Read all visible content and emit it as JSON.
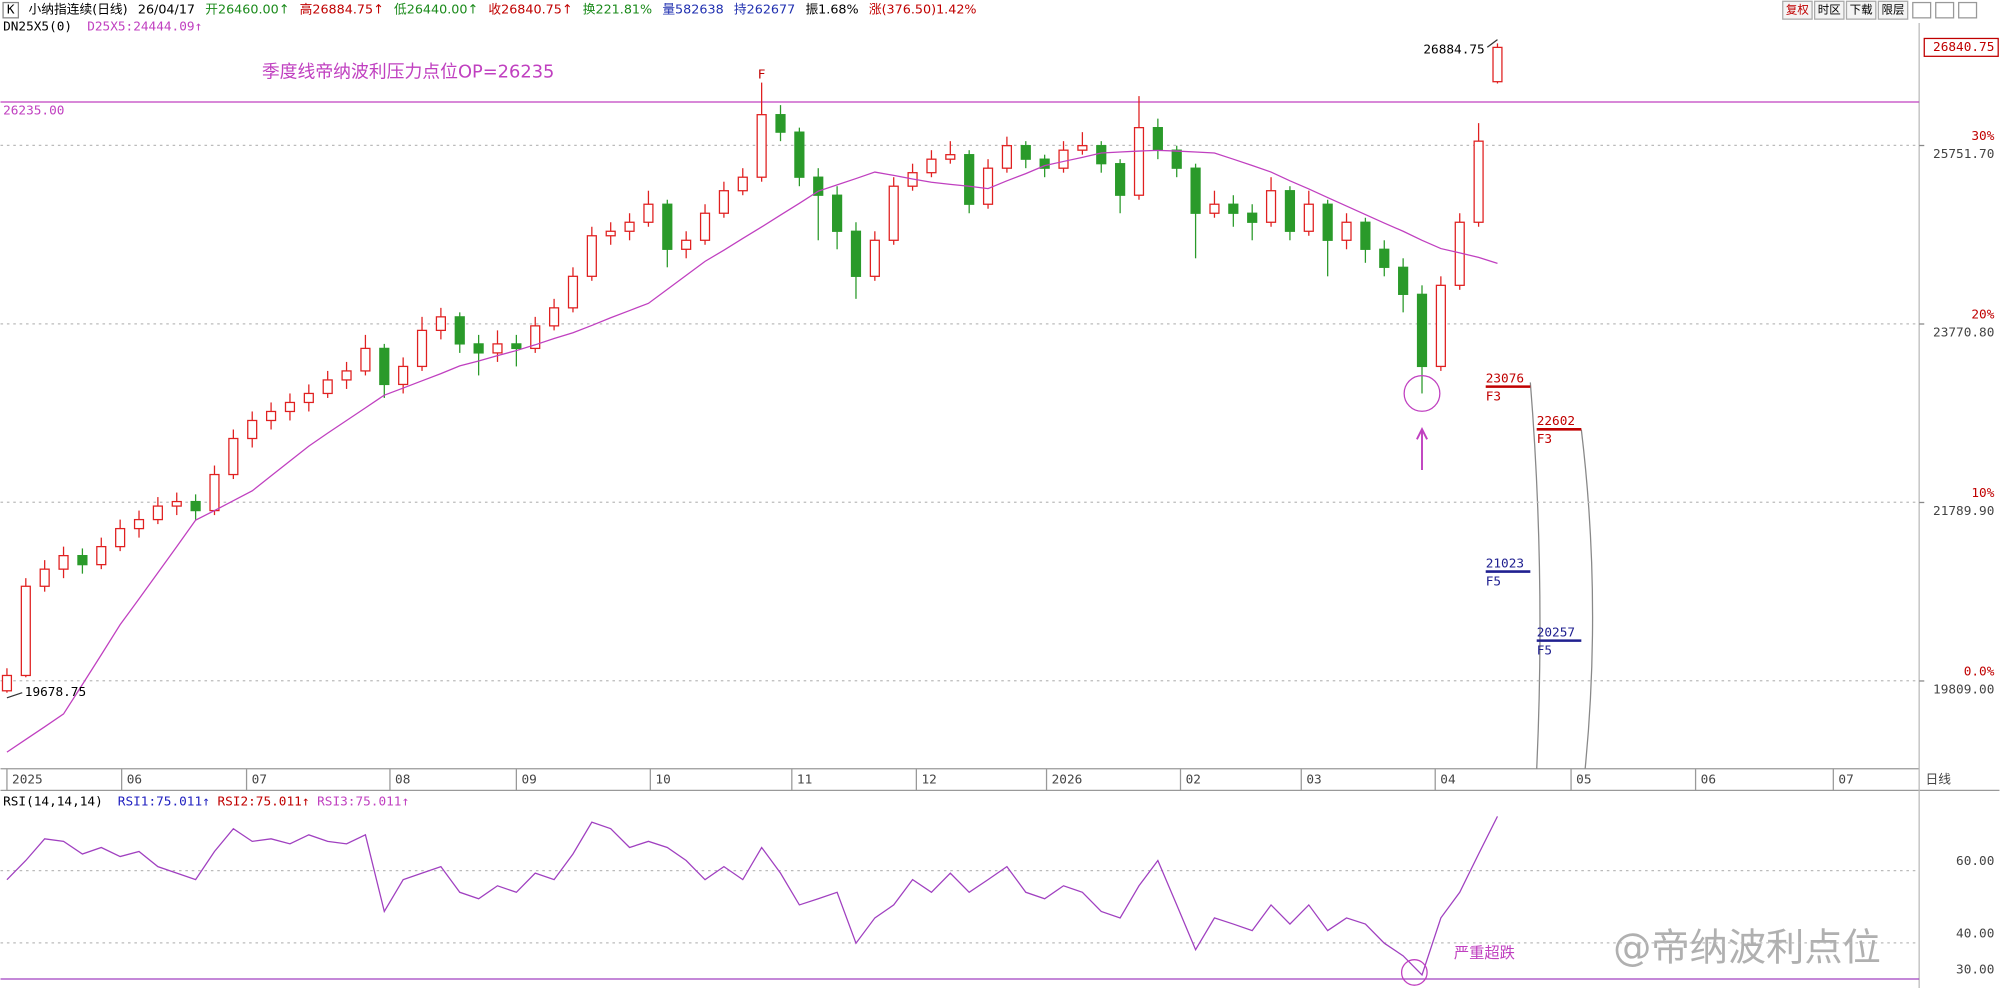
{
  "header": {
    "icon": "K",
    "items": [
      {
        "text": "小纳指连续(日线)",
        "color": "#000000"
      },
      {
        "text": "26/04/17",
        "color": "#000000"
      },
      {
        "text": "开26460.00↑",
        "color": "#1a8a1a"
      },
      {
        "text": "高26884.75↑",
        "color": "#c00000"
      },
      {
        "text": "低26440.00↑",
        "color": "#1a8a1a"
      },
      {
        "text": "收26840.75↑",
        "color": "#c00000"
      },
      {
        "text": "换221.81%",
        "color": "#1a8a1a"
      },
      {
        "text": "量582638",
        "color": "#2030b0"
      },
      {
        "text": "持262677",
        "color": "#2030b0"
      },
      {
        "text": "振1.68%",
        "color": "#000000"
      },
      {
        "text": "涨(376.50)1.42%",
        "color": "#c00000"
      }
    ],
    "buttons": [
      "复权",
      "时区",
      "下载",
      "限层"
    ],
    "indicator": "DN25X5(0)",
    "indicator_value": "D25X5:24444.09↑"
  },
  "chart_data": [
    {
      "type": "candlestick",
      "up_color": "#e02020",
      "down_color": "#2a9a2a",
      "x": [
        0,
        1,
        2,
        3,
        4,
        5,
        6,
        7,
        8,
        9,
        10,
        11,
        12,
        13,
        14,
        15,
        16,
        17,
        18,
        19,
        20,
        21,
        22,
        23,
        24,
        25,
        26,
        27,
        28,
        29,
        30,
        31,
        32,
        33,
        34,
        35,
        36,
        37,
        38,
        39,
        40,
        41,
        42,
        43,
        44,
        45,
        46,
        47,
        48,
        49,
        50,
        51,
        52,
        53,
        54,
        55,
        56,
        57,
        58,
        59,
        60,
        61,
        62,
        63,
        64,
        65,
        66,
        67,
        68,
        69,
        70,
        71,
        72,
        73,
        74,
        75,
        76,
        77,
        78,
        79
      ],
      "ohlc": [
        [
          19700,
          19950,
          19678.75,
          19870
        ],
        [
          19870,
          20950,
          19850,
          20860
        ],
        [
          20860,
          21150,
          20800,
          21050
        ],
        [
          21050,
          21300,
          20950,
          21200
        ],
        [
          21200,
          21280,
          21000,
          21100
        ],
        [
          21100,
          21400,
          21050,
          21300
        ],
        [
          21300,
          21600,
          21250,
          21500
        ],
        [
          21500,
          21700,
          21400,
          21600
        ],
        [
          21600,
          21850,
          21550,
          21750
        ],
        [
          21750,
          21900,
          21650,
          21800
        ],
        [
          21800,
          21880,
          21600,
          21700
        ],
        [
          21700,
          22200,
          21650,
          22100
        ],
        [
          22100,
          22600,
          22050,
          22500
        ],
        [
          22500,
          22800,
          22400,
          22700
        ],
        [
          22700,
          22900,
          22600,
          22800
        ],
        [
          22800,
          23000,
          22700,
          22900
        ],
        [
          22900,
          23100,
          22800,
          23000
        ],
        [
          23000,
          23250,
          22950,
          23150
        ],
        [
          23150,
          23350,
          23050,
          23250
        ],
        [
          23250,
          23650,
          23200,
          23500
        ],
        [
          23500,
          23550,
          22950,
          23100
        ],
        [
          23100,
          23400,
          23000,
          23300
        ],
        [
          23300,
          23850,
          23250,
          23700
        ],
        [
          23700,
          23950,
          23600,
          23850
        ],
        [
          23850,
          23900,
          23450,
          23550
        ],
        [
          23550,
          23650,
          23200,
          23450
        ],
        [
          23450,
          23700,
          23350,
          23550
        ],
        [
          23550,
          23650,
          23300,
          23500
        ],
        [
          23500,
          23850,
          23450,
          23750
        ],
        [
          23750,
          24050,
          23700,
          23950
        ],
        [
          23950,
          24400,
          23900,
          24300
        ],
        [
          24300,
          24850,
          24250,
          24750
        ],
        [
          24750,
          24900,
          24650,
          24800
        ],
        [
          24800,
          25000,
          24700,
          24900
        ],
        [
          24900,
          25250,
          24850,
          25100
        ],
        [
          25100,
          25150,
          24400,
          24600
        ],
        [
          24600,
          24800,
          24500,
          24700
        ],
        [
          24700,
          25100,
          24650,
          25000
        ],
        [
          25000,
          25350,
          24950,
          25250
        ],
        [
          25250,
          25500,
          25200,
          25400
        ],
        [
          25400,
          26450,
          25350,
          26094
        ],
        [
          26094,
          26200,
          25800,
          25900
        ],
        [
          25900,
          25950,
          25300,
          25400
        ],
        [
          25400,
          25500,
          24700,
          25200
        ],
        [
          25200,
          25300,
          24600,
          24800
        ],
        [
          24800,
          24900,
          24050,
          24300
        ],
        [
          24300,
          24800,
          24250,
          24700
        ],
        [
          24700,
          25400,
          24650,
          25300
        ],
        [
          25300,
          25550,
          25250,
          25450
        ],
        [
          25450,
          25700,
          25400,
          25600
        ],
        [
          25600,
          25800,
          25550,
          25650
        ],
        [
          25650,
          25700,
          25000,
          25100
        ],
        [
          25100,
          25600,
          25050,
          25500
        ],
        [
          25500,
          25850,
          25450,
          25750
        ],
        [
          25750,
          25800,
          25500,
          25600
        ],
        [
          25600,
          25650,
          25400,
          25500
        ],
        [
          25500,
          25800,
          25450,
          25700
        ],
        [
          25700,
          25900,
          25650,
          25750
        ],
        [
          25750,
          25800,
          25450,
          25550
        ],
        [
          25550,
          25600,
          25000,
          25200
        ],
        [
          25200,
          26300,
          25150,
          25950
        ],
        [
          25950,
          26050,
          25600,
          25700
        ],
        [
          25700,
          25750,
          25400,
          25500
        ],
        [
          25500,
          25550,
          24500,
          25000
        ],
        [
          25000,
          25250,
          24950,
          25100
        ],
        [
          25100,
          25200,
          24850,
          25000
        ],
        [
          25000,
          25100,
          24700,
          24900
        ],
        [
          24900,
          25400,
          24850,
          25250
        ],
        [
          25250,
          25300,
          24700,
          24800
        ],
        [
          24800,
          25250,
          24750,
          25100
        ],
        [
          25100,
          25150,
          24300,
          24700
        ],
        [
          24700,
          25000,
          24600,
          24900
        ],
        [
          24900,
          24950,
          24450,
          24600
        ],
        [
          24600,
          24700,
          24300,
          24400
        ],
        [
          24400,
          24500,
          23900,
          24100
        ],
        [
          24100,
          24200,
          23000,
          23300
        ],
        [
          23300,
          24300,
          23250,
          24200
        ],
        [
          24200,
          25000,
          24150,
          24900
        ],
        [
          24900,
          26000,
          24850,
          25800
        ],
        [
          26460,
          26884.75,
          26440,
          26840.75
        ]
      ],
      "series": [
        {
          "name": "D25X5",
          "color": "#c040c0",
          "values": [
            19019,
            19160,
            19300,
            19443,
            19770,
            20100,
            20434,
            20720,
            21010,
            21300,
            21594,
            21700,
            21810,
            21919,
            22085,
            22250,
            22415,
            22560,
            22700,
            22840,
            22981,
            23060,
            23140,
            23220,
            23306,
            23360,
            23420,
            23476,
            23540,
            23610,
            23674,
            23755,
            23840,
            23920,
            24000,
            24155,
            24310,
            24466,
            24590,
            24720,
            24848,
            24980,
            25110,
            25245,
            25315,
            25385,
            25457,
            25420,
            25380,
            25344,
            25320,
            25300,
            25273,
            25360,
            25440,
            25528,
            25575,
            25620,
            25669,
            25680,
            25690,
            25698,
            25690,
            25680,
            25669,
            25600,
            25530,
            25457,
            25360,
            25270,
            25174,
            25080,
            24985,
            24891,
            24800,
            24700,
            24608,
            24560,
            24510,
            24444.09
          ]
        }
      ],
      "xlim": [
        -0.34,
        101.35
      ],
      "xticks": [
        {
          "value": 0,
          "label": "2025"
        },
        {
          "value": 6.08,
          "label": "06"
        },
        {
          "value": 12.7,
          "label": "07"
        },
        {
          "value": 20.3,
          "label": "08"
        },
        {
          "value": 27,
          "label": "09"
        },
        {
          "value": 34.1,
          "label": "10"
        },
        {
          "value": 41.6,
          "label": "11"
        },
        {
          "value": 48.2,
          "label": "12"
        },
        {
          "value": 55.1,
          "label": "2026"
        },
        {
          "value": 62.2,
          "label": "02"
        },
        {
          "value": 68.6,
          "label": "03"
        },
        {
          "value": 75.7,
          "label": "04"
        },
        {
          "value": 82.9,
          "label": "05"
        },
        {
          "value": 89.5,
          "label": "06"
        },
        {
          "value": 96.8,
          "label": "07"
        }
      ],
      "x_label": "日线",
      "ylim": [
        18835,
        27112
      ],
      "yticks": [
        {
          "value": 19809,
          "label": "19809.00"
        },
        {
          "value": 21789.9,
          "label": "21789.90"
        },
        {
          "value": 23770.8,
          "label": "23770.80"
        },
        {
          "value": 25751.7,
          "label": "25751.70"
        }
      ],
      "y2lim": [
        -4.93,
        36.86
      ],
      "y2ticks": [
        {
          "value": 0,
          "label": "0.0%"
        },
        {
          "value": 10,
          "label": "10%"
        },
        {
          "value": 20,
          "label": "20%"
        },
        {
          "value": 30,
          "label": "30%"
        }
      ],
      "grid": true,
      "last_price": {
        "value": 26840.75,
        "label": "26840.75"
      },
      "high_label": {
        "value": 26884.75,
        "label": "26884.75"
      },
      "low_label": {
        "value": 19678.75,
        "label": "19678.75"
      },
      "peak_marker": "F",
      "resistance": {
        "value": 26235,
        "label": "26235.00",
        "note": "季度线帝纳波利压力点位OP=26235",
        "color": "#c040c0"
      },
      "targets": [
        {
          "value": 23076,
          "label": "23076",
          "tag": "F3",
          "color": "#c00000"
        },
        {
          "value": 22602,
          "label": "22602",
          "tag": "F3",
          "color": "#c00000"
        },
        {
          "value": 21023,
          "label": "21023",
          "tag": "F5",
          "color": "#202090"
        },
        {
          "value": 20257,
          "label": "20257",
          "tag": "F5",
          "color": "#202090"
        }
      ]
    },
    {
      "type": "line",
      "title": "RSI(14,14,14)",
      "legend": [
        {
          "text": "RSI1:75.011↑",
          "color": "#2020c0"
        },
        {
          "text": "RSI2:75.011↑",
          "color": "#c00000"
        },
        {
          "text": "RSI3:75.011↑",
          "color": "#c040c0"
        }
      ],
      "series": [
        {
          "name": "RSI1",
          "color": "#a040c0",
          "values": [
            57.5,
            62.8,
            68.8,
            68.1,
            64.6,
            66.4,
            63.9,
            65.3,
            61.1,
            59.3,
            57.5,
            65.3,
            71.6,
            68.1,
            68.8,
            67.4,
            69.9,
            68.1,
            67.4,
            69.9,
            48.7,
            57.5,
            59.3,
            61.1,
            54,
            52.2,
            55.8,
            54,
            59.3,
            57.5,
            64.6,
            73.4,
            71.6,
            66.4,
            68.1,
            66.4,
            62.8,
            57.5,
            61.1,
            57.5,
            66.4,
            59.3,
            50.5,
            52.2,
            54,
            39.9,
            46.9,
            50.5,
            57.5,
            54,
            59.3,
            54,
            57.5,
            61.1,
            54,
            52.2,
            55.8,
            54,
            48.7,
            46.9,
            55.8,
            62.8,
            50.5,
            38.1,
            46.9,
            45.2,
            43.4,
            50.5,
            45.2,
            50.5,
            43.4,
            46.9,
            45.2,
            39.9,
            36.4,
            31.1,
            46.9,
            54,
            64.6,
            75.011
          ]
        }
      ],
      "ylim": [
        27.5,
        81.5
      ],
      "yticks": [
        {
          "value": 30,
          "label": "30.00"
        },
        {
          "value": 40,
          "label": "40.00"
        },
        {
          "value": 60,
          "label": "60.00"
        }
      ],
      "note": "严重超跌"
    }
  ],
  "watermark": "@帝纳波利点位"
}
